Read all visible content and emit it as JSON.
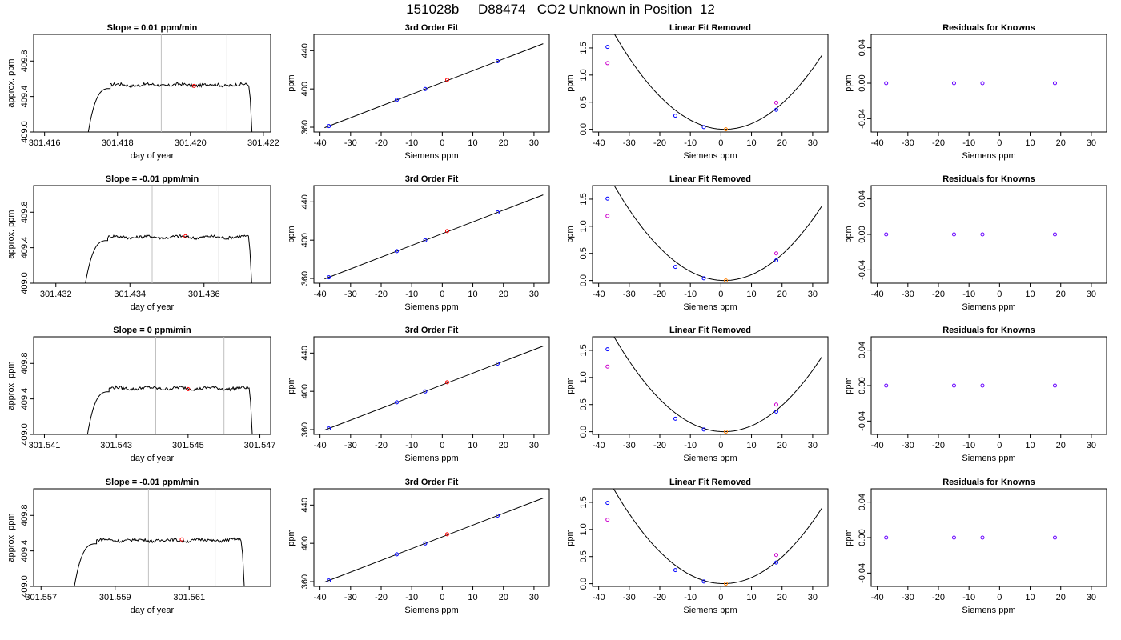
{
  "title": "151028b     D88474   CO2 Unknown in Position  12",
  "colors": {
    "line": "#000000",
    "vline": "#c0c0c0",
    "known": "#0000ff",
    "unknown_fit": "#ff0000",
    "unknown_lin": "#ff7f00",
    "raw": "#cc00cc",
    "residual": "#6600ff"
  },
  "chart_data": [
    {
      "type": "line",
      "panel": "timeseries",
      "row": 0,
      "title": "Slope =  0.01  ppm/min",
      "xlabel": "day of year",
      "ylabel": "approx. ppm",
      "xlim": [
        301.4157,
        301.4222
      ],
      "ylim": [
        409.0,
        410.1
      ],
      "xticks": [
        301.416,
        301.418,
        301.42,
        301.422
      ],
      "xtick_labels": [
        "301.416",
        "301.418",
        "301.420",
        "301.422"
      ],
      "yticks": [
        409.0,
        409.4,
        409.8
      ],
      "ytick_labels": [
        "409.0",
        "409.4",
        "409.8"
      ],
      "vlines": [
        301.4192,
        301.421
      ],
      "trace": {
        "start": 301.4172,
        "rise_end": 301.4178,
        "end": 301.4216,
        "fall_end": 301.4217,
        "level": 409.53,
        "low": 409.0
      },
      "marker": {
        "x": 301.4201,
        "y": 409.52
      }
    },
    {
      "type": "line",
      "panel": "timeseries",
      "row": 1,
      "title": "Slope =  -0.01  ppm/min",
      "xlabel": "day of year",
      "ylabel": "approx. ppm",
      "xlim": [
        301.4314,
        301.4378
      ],
      "ylim": [
        409.0,
        410.1
      ],
      "xticks": [
        301.432,
        301.434,
        301.436
      ],
      "xtick_labels": [
        "301.432",
        "301.434",
        "301.436"
      ],
      "yticks": [
        409.0,
        409.4,
        409.8
      ],
      "ytick_labels": [
        "409.0",
        "409.4",
        "409.8"
      ],
      "vlines": [
        301.4346,
        301.4364
      ],
      "trace": {
        "start": 301.4328,
        "rise_end": 301.4334,
        "end": 301.4372,
        "fall_end": 301.4373,
        "level": 409.52,
        "low": 409.0
      },
      "marker": {
        "x": 301.4355,
        "y": 409.53
      }
    },
    {
      "type": "line",
      "panel": "timeseries",
      "row": 2,
      "title": "Slope =  0  ppm/min",
      "xlabel": "day of year",
      "ylabel": "approx. ppm",
      "xlim": [
        301.5407,
        301.5473
      ],
      "ylim": [
        409.0,
        410.1
      ],
      "xticks": [
        301.541,
        301.543,
        301.545,
        301.547
      ],
      "xtick_labels": [
        "301.541",
        "301.543",
        "301.545",
        "301.547"
      ],
      "yticks": [
        409.0,
        409.4,
        409.8
      ],
      "ytick_labels": [
        "409.0",
        "409.4",
        "409.8"
      ],
      "vlines": [
        301.5441,
        301.546
      ],
      "trace": {
        "start": 301.5422,
        "rise_end": 301.5428,
        "end": 301.5467,
        "fall_end": 301.5468,
        "level": 409.52,
        "low": 409.0
      },
      "marker": {
        "x": 301.545,
        "y": 409.51
      }
    },
    {
      "type": "line",
      "panel": "timeseries",
      "row": 3,
      "title": "Slope =  -0.01  ppm/min",
      "xlabel": "day of year",
      "ylabel": "approx. ppm",
      "xlim": [
        301.5568,
        301.5632
      ],
      "ylim": [
        409.0,
        410.1
      ],
      "xticks": [
        301.557,
        301.559,
        301.561
      ],
      "xtick_labels": [
        "301.557",
        "301.559",
        "301.561"
      ],
      "yticks": [
        409.0,
        409.4,
        409.8
      ],
      "ytick_labels": [
        "409.0",
        "409.4",
        "409.8"
      ],
      "vlines": [
        301.5599,
        301.5617
      ],
      "trace": {
        "start": 301.5579,
        "rise_end": 301.5585,
        "end": 301.5624,
        "fall_end": 301.5625,
        "level": 409.52,
        "low": 409.0
      },
      "marker": {
        "x": 301.5608,
        "y": 409.53
      }
    },
    {
      "type": "scatter",
      "panel": "fit",
      "row": 0,
      "title": "3rd Order Fit",
      "xlabel": "Siemens ppm",
      "ylabel": "ppm",
      "xlim": [
        -42,
        35
      ],
      "ylim": [
        355,
        457
      ],
      "xticks": [
        -40,
        -30,
        -20,
        -10,
        0,
        10,
        20,
        30
      ],
      "xtick_labels": [
        "-40",
        "-30",
        "-20",
        "-10",
        "0",
        "10",
        "20",
        "30"
      ],
      "yticks": [
        360,
        400,
        440
      ],
      "ytick_labels": [
        "360",
        "400",
        "440"
      ],
      "knowns": {
        "x": [
          -37.1,
          -14.9,
          -5.6,
          18.1
        ],
        "y": [
          361.2,
          388.5,
          399.9,
          429.0
        ]
      },
      "unknown": {
        "x": 1.6,
        "y": 409.5
      },
      "line": {
        "x": [
          -38.5,
          33
        ],
        "y": [
          359.5,
          447.3
        ]
      }
    },
    {
      "type": "scatter",
      "panel": "fit",
      "row": 1,
      "title": "3rd Order Fit",
      "xlabel": "Siemens ppm",
      "ylabel": "ppm",
      "xlim": [
        -42,
        35
      ],
      "ylim": [
        355,
        457
      ],
      "xticks": [
        -40,
        -30,
        -20,
        -10,
        0,
        10,
        20,
        30
      ],
      "xtick_labels": [
        "-40",
        "-30",
        "-20",
        "-10",
        "0",
        "10",
        "20",
        "30"
      ],
      "yticks": [
        360,
        400,
        440
      ],
      "ytick_labels": [
        "360",
        "400",
        "440"
      ],
      "knowns": {
        "x": [
          -37.1,
          -14.9,
          -5.6,
          18.1
        ],
        "y": [
          361.2,
          388.5,
          399.9,
          429.0
        ]
      },
      "unknown": {
        "x": 1.6,
        "y": 409.5
      },
      "line": {
        "x": [
          -38.5,
          33
        ],
        "y": [
          359.5,
          447.3
        ]
      }
    },
    {
      "type": "scatter",
      "panel": "fit",
      "row": 2,
      "title": "3rd Order Fit",
      "xlabel": "Siemens ppm",
      "ylabel": "ppm",
      "xlim": [
        -42,
        35
      ],
      "ylim": [
        355,
        457
      ],
      "xticks": [
        -40,
        -30,
        -20,
        -10,
        0,
        10,
        20,
        30
      ],
      "xtick_labels": [
        "-40",
        "-30",
        "-20",
        "-10",
        "0",
        "10",
        "20",
        "30"
      ],
      "yticks": [
        360,
        400,
        440
      ],
      "ytick_labels": [
        "360",
        "400",
        "440"
      ],
      "knowns": {
        "x": [
          -37.1,
          -14.9,
          -5.6,
          18.1
        ],
        "y": [
          361.2,
          388.5,
          399.9,
          429.0
        ]
      },
      "unknown": {
        "x": 1.6,
        "y": 409.5
      },
      "line": {
        "x": [
          -38.5,
          33
        ],
        "y": [
          359.5,
          447.3
        ]
      }
    },
    {
      "type": "scatter",
      "panel": "fit",
      "row": 3,
      "title": "3rd Order Fit",
      "xlabel": "Siemens ppm",
      "ylabel": "ppm",
      "xlim": [
        -42,
        35
      ],
      "ylim": [
        355,
        457
      ],
      "xticks": [
        -40,
        -30,
        -20,
        -10,
        0,
        10,
        20,
        30
      ],
      "xtick_labels": [
        "-40",
        "-30",
        "-20",
        "-10",
        "0",
        "10",
        "20",
        "30"
      ],
      "yticks": [
        360,
        400,
        440
      ],
      "ytick_labels": [
        "360",
        "400",
        "440"
      ],
      "knowns": {
        "x": [
          -37.1,
          -14.9,
          -5.6,
          18.1
        ],
        "y": [
          361.2,
          388.5,
          399.9,
          429.0
        ]
      },
      "unknown": {
        "x": 1.6,
        "y": 409.5
      },
      "line": {
        "x": [
          -38.5,
          33
        ],
        "y": [
          359.5,
          447.3
        ]
      }
    },
    {
      "type": "scatter",
      "panel": "linear",
      "row": 0,
      "title": "Linear Fit Removed",
      "xlabel": "Siemens ppm",
      "ylabel": "ppm",
      "xlim": [
        -42,
        35
      ],
      "ylim": [
        -0.05,
        1.75
      ],
      "xticks": [
        -40,
        -30,
        -20,
        -10,
        0,
        10,
        20,
        30
      ],
      "xtick_labels": [
        "-40",
        "-30",
        "-20",
        "-10",
        "0",
        "10",
        "20",
        "30"
      ],
      "yticks": [
        0.0,
        0.5,
        1.0,
        1.5
      ],
      "ytick_labels": [
        "0.0",
        "0.5",
        "1.0",
        "1.5"
      ],
      "knowns": {
        "x": [
          -37.1,
          -14.9,
          -5.6,
          18.1
        ],
        "y": [
          1.52,
          0.25,
          0.04,
          0.36
        ]
      },
      "raw": {
        "x": [
          -37.1,
          18.1
        ],
        "y": [
          1.22,
          0.49
        ]
      },
      "unknown": {
        "x": 1.6,
        "y": 0.0
      },
      "curve": {
        "a": 0.00135,
        "b": -0.00331,
        "c": 0.002,
        "xmin": -39,
        "xmax": 33
      }
    },
    {
      "type": "scatter",
      "panel": "linear",
      "row": 1,
      "title": "Linear Fit Removed",
      "xlabel": "Siemens ppm",
      "ylabel": "ppm",
      "xlim": [
        -42,
        35
      ],
      "ylim": [
        -0.05,
        1.75
      ],
      "xticks": [
        -40,
        -30,
        -20,
        -10,
        0,
        10,
        20,
        30
      ],
      "xtick_labels": [
        "-40",
        "-30",
        "-20",
        "-10",
        "0",
        "10",
        "20",
        "30"
      ],
      "yticks": [
        0.0,
        0.5,
        1.0,
        1.5
      ],
      "ytick_labels": [
        "0.0",
        "0.5",
        "1.0",
        "1.5"
      ],
      "knowns": {
        "x": [
          -37.1,
          -14.9,
          -5.6,
          18.1
        ],
        "y": [
          1.51,
          0.25,
          0.04,
          0.37
        ]
      },
      "raw": {
        "x": [
          -37.1,
          18.1
        ],
        "y": [
          1.19,
          0.5
        ]
      },
      "unknown": {
        "x": 1.6,
        "y": 0.0
      },
      "curve": {
        "a": 0.00135,
        "b": -0.00301,
        "c": 0.002,
        "xmin": -39,
        "xmax": 33
      }
    },
    {
      "type": "scatter",
      "panel": "linear",
      "row": 2,
      "title": "Linear Fit Removed",
      "xlabel": "Siemens ppm",
      "ylabel": "ppm",
      "xlim": [
        -42,
        35
      ],
      "ylim": [
        -0.05,
        1.75
      ],
      "xticks": [
        -40,
        -30,
        -20,
        -10,
        0,
        10,
        20,
        30
      ],
      "xtick_labels": [
        "-40",
        "-30",
        "-20",
        "-10",
        "0",
        "10",
        "20",
        "30"
      ],
      "yticks": [
        0.0,
        0.5,
        1.0,
        1.5
      ],
      "ytick_labels": [
        "0.0",
        "0.5",
        "1.0",
        "1.5"
      ],
      "knowns": {
        "x": [
          -37.1,
          -14.9,
          -5.6,
          18.1
        ],
        "y": [
          1.52,
          0.24,
          0.04,
          0.37
        ]
      },
      "raw": {
        "x": [
          -37.1,
          18.1
        ],
        "y": [
          1.2,
          0.5
        ]
      },
      "unknown": {
        "x": 1.6,
        "y": 0.0
      },
      "curve": {
        "a": 0.00135,
        "b": -0.00281,
        "c": 0.002,
        "xmin": -39,
        "xmax": 33
      }
    },
    {
      "type": "scatter",
      "panel": "linear",
      "row": 3,
      "title": "Linear Fit Removed",
      "xlabel": "Siemens ppm",
      "ylabel": "ppm",
      "xlim": [
        -42,
        35
      ],
      "ylim": [
        -0.05,
        1.75
      ],
      "xticks": [
        -40,
        -30,
        -20,
        -10,
        0,
        10,
        20,
        30
      ],
      "xtick_labels": [
        "-40",
        "-30",
        "-20",
        "-10",
        "0",
        "10",
        "20",
        "30"
      ],
      "yticks": [
        0.0,
        0.5,
        1.0,
        1.5
      ],
      "ytick_labels": [
        "0.0",
        "0.5",
        "1.0",
        "1.5"
      ],
      "knowns": {
        "x": [
          -37.1,
          -14.9,
          -5.6,
          18.1
        ],
        "y": [
          1.49,
          0.25,
          0.04,
          0.39
        ]
      },
      "raw": {
        "x": [
          -37.1,
          18.1
        ],
        "y": [
          1.18,
          0.53
        ]
      },
      "unknown": {
        "x": 1.6,
        "y": 0.0
      },
      "curve": {
        "a": 0.00135,
        "b": -0.00241,
        "c": 0.002,
        "xmin": -39,
        "xmax": 33
      }
    },
    {
      "type": "scatter",
      "panel": "residuals",
      "row": 0,
      "title": "Residuals for Knowns",
      "xlabel": "Siemens ppm",
      "ylabel": "ppm",
      "xlim": [
        -42,
        35
      ],
      "ylim": [
        -0.055,
        0.055
      ],
      "xticks": [
        -40,
        -30,
        -20,
        -10,
        0,
        10,
        20,
        30
      ],
      "xtick_labels": [
        "-40",
        "-30",
        "-20",
        "-10",
        "0",
        "10",
        "20",
        "30"
      ],
      "yticks": [
        -0.04,
        0.0,
        0.04
      ],
      "ytick_labels": [
        "-0.04",
        "0.00",
        "0.04"
      ],
      "points": {
        "x": [
          -37.1,
          -14.9,
          -5.6,
          18.1
        ],
        "y": [
          0,
          0,
          0,
          0
        ]
      }
    },
    {
      "type": "scatter",
      "panel": "residuals",
      "row": 1,
      "title": "Residuals for Knowns",
      "xlabel": "Siemens ppm",
      "ylabel": "ppm",
      "xlim": [
        -42,
        35
      ],
      "ylim": [
        -0.055,
        0.055
      ],
      "xticks": [
        -40,
        -30,
        -20,
        -10,
        0,
        10,
        20,
        30
      ],
      "xtick_labels": [
        "-40",
        "-30",
        "-20",
        "-10",
        "0",
        "10",
        "20",
        "30"
      ],
      "yticks": [
        -0.04,
        0.0,
        0.04
      ],
      "ytick_labels": [
        "-0.04",
        "0.00",
        "0.04"
      ],
      "points": {
        "x": [
          -37.1,
          -14.9,
          -5.6,
          18.1
        ],
        "y": [
          0,
          0,
          0,
          0
        ]
      }
    },
    {
      "type": "scatter",
      "panel": "residuals",
      "row": 2,
      "title": "Residuals for Knowns",
      "xlabel": "Siemens ppm",
      "ylabel": "ppm",
      "xlim": [
        -42,
        35
      ],
      "ylim": [
        -0.055,
        0.055
      ],
      "xticks": [
        -40,
        -30,
        -20,
        -10,
        0,
        10,
        20,
        30
      ],
      "xtick_labels": [
        "-40",
        "-30",
        "-20",
        "-10",
        "0",
        "10",
        "20",
        "30"
      ],
      "yticks": [
        -0.04,
        0.0,
        0.04
      ],
      "ytick_labels": [
        "-0.04",
        "0.00",
        "0.04"
      ],
      "points": {
        "x": [
          -37.1,
          -14.9,
          -5.6,
          18.1
        ],
        "y": [
          0,
          0,
          0,
          0
        ]
      }
    },
    {
      "type": "scatter",
      "panel": "residuals",
      "row": 3,
      "title": "Residuals for Knowns",
      "xlabel": "Siemens ppm",
      "ylabel": "ppm",
      "xlim": [
        -42,
        35
      ],
      "ylim": [
        -0.055,
        0.055
      ],
      "xticks": [
        -40,
        -30,
        -20,
        -10,
        0,
        10,
        20,
        30
      ],
      "xtick_labels": [
        "-40",
        "-30",
        "-20",
        "-10",
        "0",
        "10",
        "20",
        "30"
      ],
      "yticks": [
        -0.04,
        0.0,
        0.04
      ],
      "ytick_labels": [
        "-0.04",
        "0.00",
        "0.04"
      ],
      "points": {
        "x": [
          -37.1,
          -14.9,
          -5.6,
          18.1
        ],
        "y": [
          0,
          0,
          0,
          0
        ]
      }
    }
  ]
}
